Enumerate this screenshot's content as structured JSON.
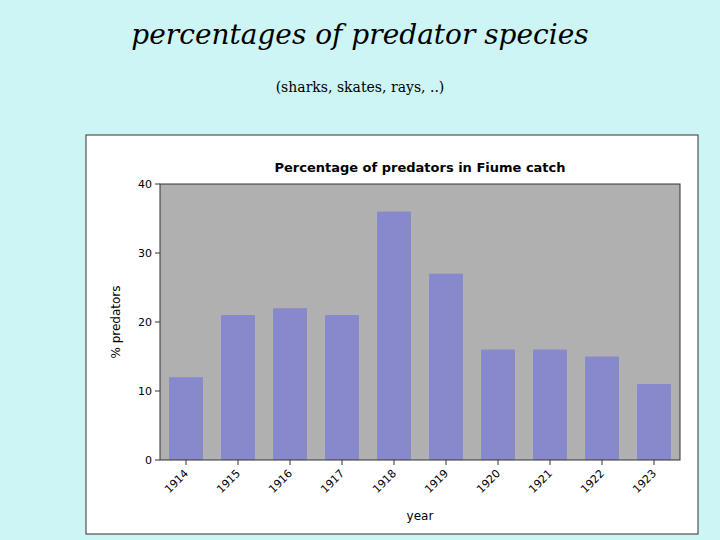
{
  "chart_data": {
    "type": "bar",
    "title": "percentages of predator species",
    "subtitle": "(sharks, skates, rays, ..)",
    "annotations": [
      "Percentage of predators in Fiume catch"
    ],
    "xlabel": "year",
    "ylabel": "% predators",
    "categories": [
      "1914",
      "1915",
      "1916",
      "1917",
      "1918",
      "1919",
      "1920",
      "1921",
      "1922",
      "1923"
    ],
    "values": [
      12,
      21,
      22,
      21,
      36,
      27,
      16,
      16,
      15,
      11
    ],
    "color": "#8888cc",
    "ylim": [
      0,
      40
    ],
    "yticks": [
      0,
      10,
      20,
      30,
      40
    ],
    "grid": false
  }
}
